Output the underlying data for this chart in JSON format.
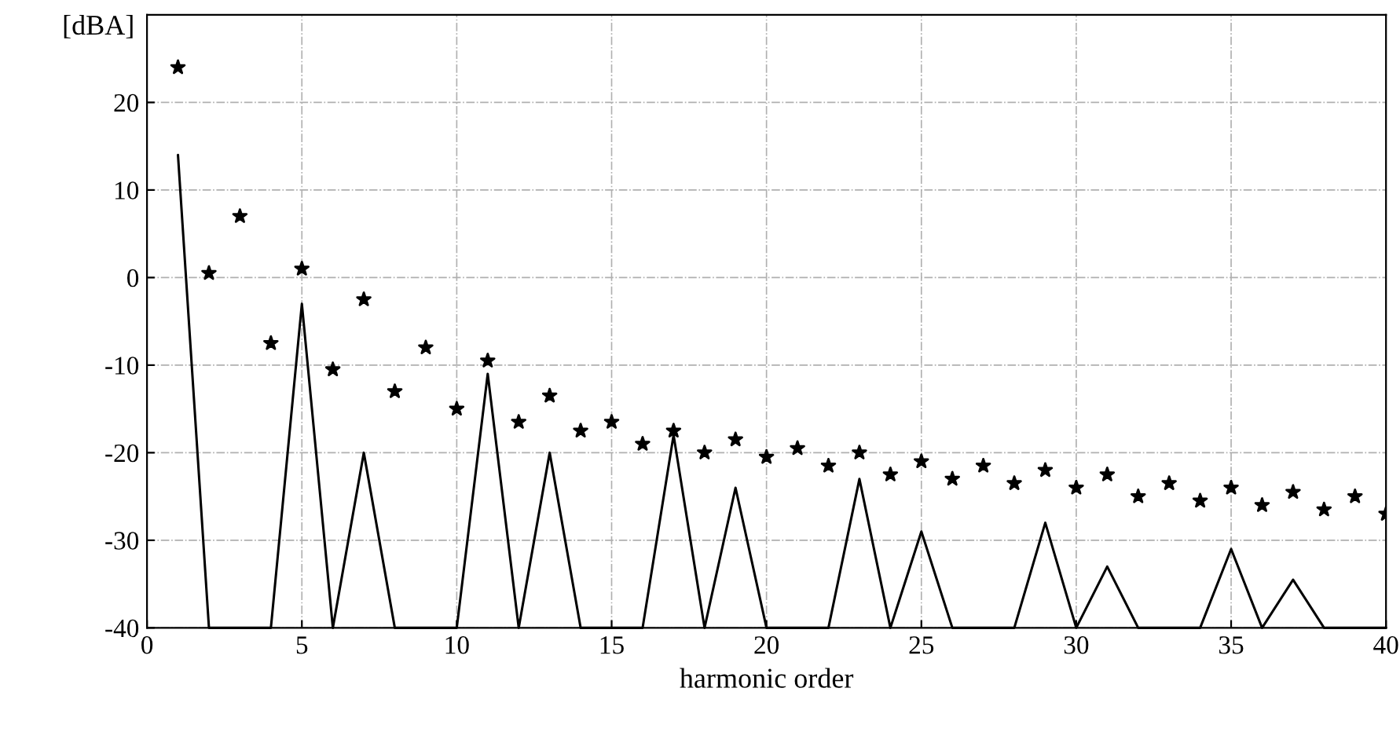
{
  "chart_data": {
    "type": "line",
    "xlabel": "harmonic order",
    "ylabel": "[dBA]",
    "x": [
      1,
      2,
      3,
      4,
      5,
      6,
      7,
      8,
      9,
      10,
      11,
      12,
      13,
      14,
      15,
      16,
      17,
      18,
      19,
      20,
      21,
      22,
      23,
      24,
      25,
      26,
      27,
      28,
      29,
      30,
      31,
      32,
      33,
      34,
      35,
      36,
      37,
      38,
      39,
      40
    ],
    "series": [
      {
        "type": "scatter",
        "color": "#000000",
        "marker": "star",
        "values": [
          24,
          0.5,
          7,
          -7.5,
          1,
          -10.5,
          -2.5,
          -13,
          -8,
          -15,
          -9.5,
          -16.5,
          -13.5,
          -17.5,
          -16.5,
          -19,
          -17.5,
          -20,
          -18.5,
          -20.5,
          -19.5,
          -21.5,
          -20,
          -22.5,
          -21,
          -23,
          -21.5,
          -23.5,
          -22,
          -24,
          -22.5,
          -25,
          -23.5,
          -25.5,
          -24,
          -26,
          -24.5,
          -26.5,
          -25,
          -27
        ]
      },
      {
        "color": "#000000",
        "line_style": "solid",
        "values": [
          14,
          -40,
          -40,
          -40,
          -3,
          -40,
          -20,
          -40,
          -40,
          -40,
          -11,
          -40,
          -20,
          -40,
          -40,
          -40,
          -18,
          -40,
          -24,
          -40,
          -40,
          -40,
          -23,
          -40,
          -29,
          -40,
          -40,
          -40,
          -28,
          -40,
          -33,
          -40,
          -40,
          -40,
          -31,
          -40,
          -34.5,
          -40,
          -40,
          -40
        ]
      }
    ],
    "xlim": [
      0,
      40
    ],
    "xticks": [
      0,
      5,
      10,
      15,
      20,
      25,
      30,
      35,
      40
    ],
    "ylim": [
      -40,
      30
    ],
    "yticks": [
      -40,
      -30,
      -20,
      -10,
      0,
      10,
      20
    ],
    "grid": true
  }
}
